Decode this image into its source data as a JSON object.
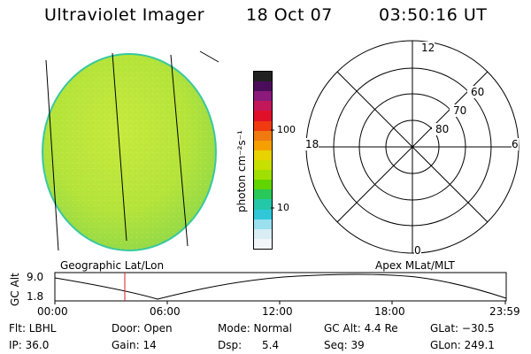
{
  "header": {
    "instrument": "Ultraviolet Imager",
    "date": "18 Oct 07",
    "time": "03:50:16 UT"
  },
  "colorbar": {
    "unit_label": "photon cm⁻²s⁻¹",
    "ticks": [
      "100",
      "10"
    ],
    "colors": [
      "#222222",
      "#4b0d5a",
      "#8b1a7a",
      "#c2185b",
      "#e0102a",
      "#f03a10",
      "#f07a10",
      "#f5a000",
      "#e6d300",
      "#c8e000",
      "#a0e000",
      "#62d400",
      "#28c85a",
      "#22c8a8",
      "#30c8d8",
      "#9ae0ee",
      "#d8eef4",
      "#f2f6f8"
    ]
  },
  "earth_image": {
    "caption": "Geographic Lat/Lon",
    "fill_color": "#b8e63a",
    "edge_color": "#38c8a0"
  },
  "polar_plot": {
    "caption": "Apex MLat/MLT",
    "lat_labels": [
      "60",
      "70",
      "80"
    ],
    "mlt_labels": {
      "top": "12",
      "left": "18",
      "right": "6",
      "bottom": "0"
    }
  },
  "altitude_plot": {
    "ylabel": "GC Alt",
    "y_ticks": [
      "9.0",
      "1.8"
    ],
    "x_ticks": [
      "00:00",
      "06:00",
      "12:00",
      "18:00",
      "23:59"
    ],
    "marker_time": "03:50",
    "marker_color": "#d02020"
  },
  "status": {
    "row1": [
      {
        "label": "Flt: LBHL"
      },
      {
        "label": "Door: Open"
      },
      {
        "label": "Mode: Normal"
      },
      {
        "label": "GC Alt: 4.4 Re"
      },
      {
        "label": "GLat: −30.5"
      }
    ],
    "row2": [
      {
        "label": "IP: 36.0"
      },
      {
        "label": "Gain: 14"
      },
      {
        "label": "Dsp:      5.4"
      },
      {
        "label": "Seq: 39"
      },
      {
        "label": "GLon: 249.1"
      }
    ]
  }
}
